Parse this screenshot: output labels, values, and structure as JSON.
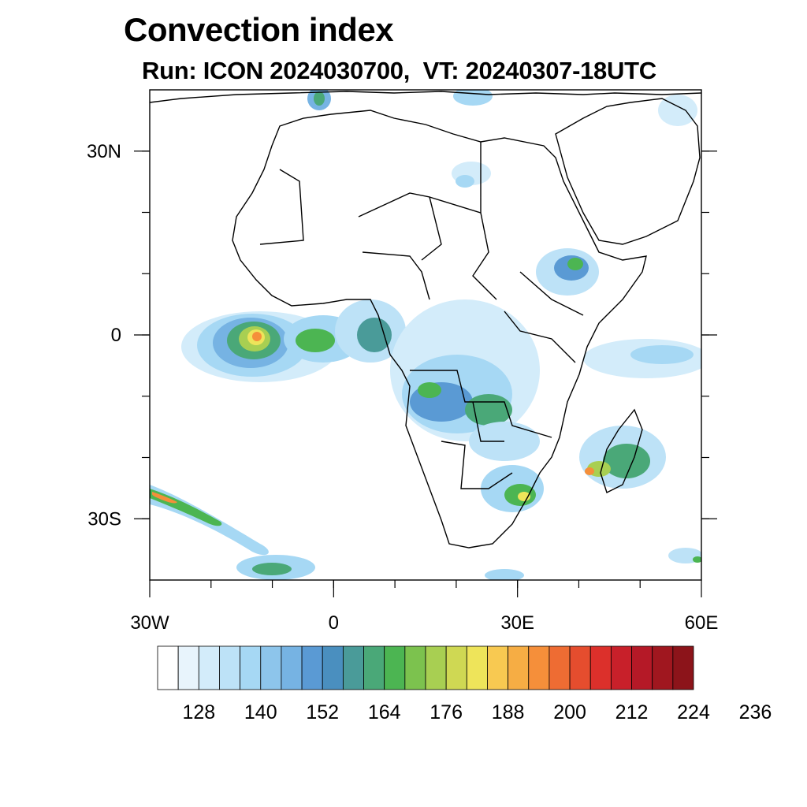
{
  "header": {
    "title": "Convection index",
    "subtitle": "Run: ICON 2024030700,  VT: 20240307-18UTC"
  },
  "map": {
    "lon_range": [
      -30,
      60
    ],
    "lat_range": [
      -40,
      40
    ],
    "lat_ticks": [
      {
        "value": 30,
        "label": "30N"
      },
      {
        "value": 0,
        "label": "0"
      },
      {
        "value": -30,
        "label": "30S"
      }
    ],
    "lon_ticks": [
      {
        "value": -30,
        "label": "30W"
      },
      {
        "value": 0,
        "label": "0"
      },
      {
        "value": 30,
        "label": "30E"
      },
      {
        "value": 60,
        "label": "60E"
      }
    ]
  },
  "colorbar": {
    "colors": [
      "#ffffff",
      "#e8f4fc",
      "#d3ecfa",
      "#bde2f7",
      "#a6d8f4",
      "#8dc5eb",
      "#76b3e3",
      "#5a9ad4",
      "#4a8fbf",
      "#4a9b99",
      "#4aa878",
      "#4cb552",
      "#7cc24e",
      "#a8cf52",
      "#cfd853",
      "#eee45a",
      "#f8c951",
      "#f6ad44",
      "#f58f3a",
      "#ee6c33",
      "#e54d2e",
      "#dc302b",
      "#c8202a",
      "#b51927",
      "#a0171f",
      "#8c141a"
    ],
    "labels": [
      "128",
      "140",
      "152",
      "164",
      "176",
      "188",
      "200",
      "212",
      "224",
      "236"
    ]
  }
}
